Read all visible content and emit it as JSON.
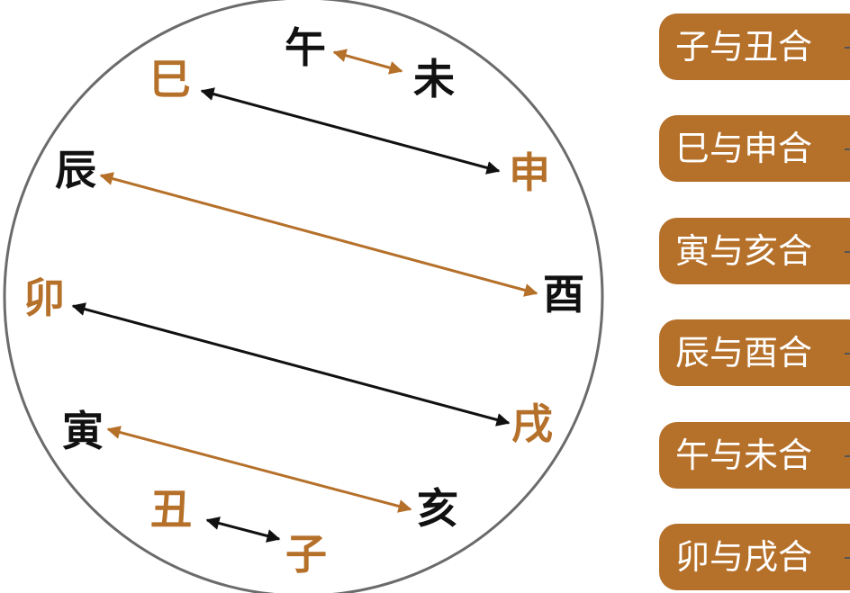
{
  "colors": {
    "black": "#111111",
    "brown": "#b5702a",
    "circle": "#6b6b6b",
    "pill": "#b5702a"
  },
  "branches": {
    "wu": {
      "char": "午",
      "color": "black"
    },
    "wei": {
      "char": "未",
      "color": "black"
    },
    "si": {
      "char": "巳",
      "color": "brown"
    },
    "shen": {
      "char": "申",
      "color": "brown"
    },
    "chen": {
      "char": "辰",
      "color": "black"
    },
    "you": {
      "char": "酉",
      "color": "black"
    },
    "mao": {
      "char": "卯",
      "color": "brown"
    },
    "xu": {
      "char": "戌",
      "color": "brown"
    },
    "yin": {
      "char": "寅",
      "color": "black"
    },
    "hai": {
      "char": "亥",
      "color": "black"
    },
    "chou": {
      "char": "丑",
      "color": "brown"
    },
    "zi": {
      "char": "子",
      "color": "brown"
    }
  },
  "pairs": [
    {
      "from": "wu",
      "to": "wei",
      "color": "brown"
    },
    {
      "from": "si",
      "to": "shen",
      "color": "black"
    },
    {
      "from": "chen",
      "to": "you",
      "color": "brown"
    },
    {
      "from": "mao",
      "to": "xu",
      "color": "black"
    },
    {
      "from": "yin",
      "to": "hai",
      "color": "brown"
    },
    {
      "from": "chou",
      "to": "zi",
      "color": "black"
    }
  ],
  "combinations": [
    "子与丑合",
    "巳与申合",
    "寅与亥合",
    "辰与酉合",
    "午与未合",
    "卯与戌合"
  ]
}
